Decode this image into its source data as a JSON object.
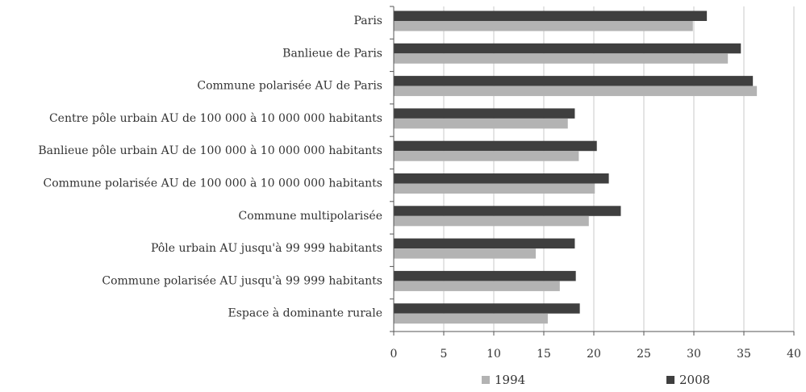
{
  "chart_data": {
    "type": "bar",
    "orientation": "horizontal",
    "categories": [
      "Paris",
      "Banlieue de Paris",
      "Commune polarisée AU de Paris",
      "Centre pôle urbain AU de 100 000 à 10 000 000 habitants",
      "Banlieue pôle urbain AU de 100 000 à 10 000 000 habitants",
      "Commune polarisée AU de 100 000 à 10 000 000 habitants",
      "Commune multipolarisée",
      "Pôle urbain AU jusqu'à 99 999 habitants",
      "Commune polarisée AU jusqu'à 99 999 habitants",
      "Espace à dominante rurale"
    ],
    "series": [
      {
        "name": "1994",
        "color": "#b3b3b3",
        "values": [
          29.9,
          33.4,
          36.3,
          17.4,
          18.5,
          20.1,
          19.5,
          14.2,
          16.6,
          15.4
        ]
      },
      {
        "name": "2008",
        "color": "#3f3f3f",
        "values": [
          31.3,
          34.7,
          35.9,
          18.1,
          20.3,
          21.5,
          22.7,
          18.1,
          18.2,
          18.6
        ]
      }
    ],
    "xlim": [
      0,
      40
    ],
    "xticks": [
      "0",
      "5",
      "10",
      "15",
      "20",
      "25",
      "30",
      "35",
      "40"
    ],
    "grid": true,
    "legend_position": "bottom"
  }
}
